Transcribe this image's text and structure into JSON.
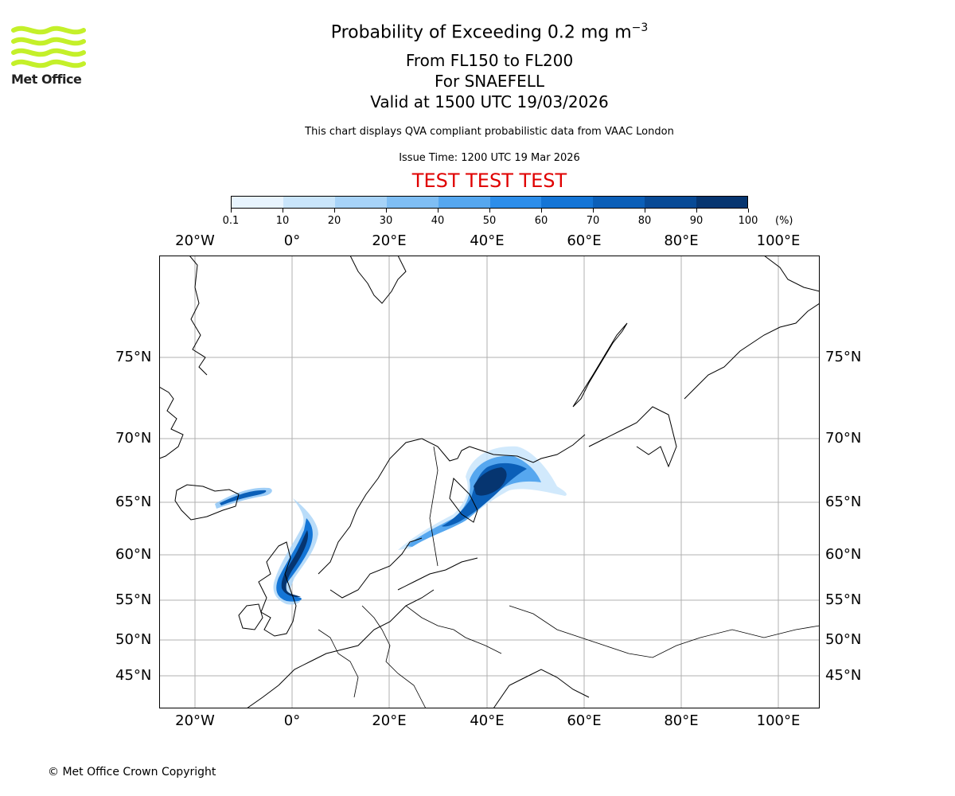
{
  "logo": {
    "text": "Met Office",
    "color": "#c4f02a"
  },
  "header": {
    "title_main": "Probability of Exceeding 0.2 mg m",
    "title_sup": "−3",
    "level_range": "From FL150 to FL200",
    "volcano": "For SNAEFELL",
    "valid_time": "Valid at 1500 UTC 19/03/2026",
    "description": "This chart displays QVA compliant probabilistic data from VAAC London",
    "issue_time": "Issue Time: 1200 UTC 19 Mar 2026",
    "test_banner": "TEST TEST TEST",
    "test_color": "#e00000"
  },
  "colorbar": {
    "unit": "(%)",
    "ticks": [
      "0.1",
      "10",
      "20",
      "30",
      "40",
      "50",
      "60",
      "70",
      "80",
      "90",
      "100"
    ],
    "colors": [
      "#e8f4fe",
      "#c9e5fb",
      "#a7d3f8",
      "#7fbef4",
      "#56a7ef",
      "#2d8eea",
      "#1475d6",
      "#0b5fb8",
      "#084a96",
      "#063570"
    ]
  },
  "map": {
    "lon_labels": [
      "20°W",
      "0°",
      "20°E",
      "40°E",
      "60°E",
      "80°E",
      "100°E"
    ],
    "lat_labels": [
      "75°N",
      "70°N",
      "65°N",
      "60°N",
      "55°N",
      "50°N",
      "45°N"
    ],
    "gridline_color": "#b0b0b0"
  },
  "footer": {
    "copyright": "© Met Office Crown Copyright"
  }
}
